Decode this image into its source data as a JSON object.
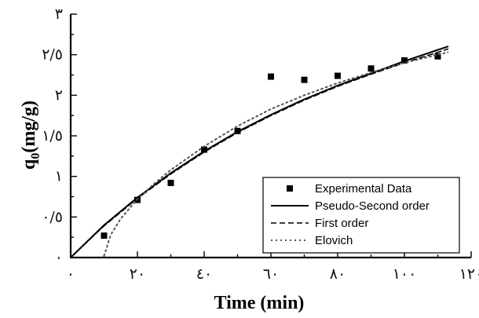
{
  "chart_data": {
    "type": "scatter",
    "title": "",
    "xlabel": "Time (min)",
    "ylabel": "q0(mg/g)",
    "ylabel_main": "q",
    "ylabel_sub": "0",
    "ylabel_rest": "(mg/g)",
    "xlim": [
      0,
      120
    ],
    "ylim": [
      0,
      3
    ],
    "x_ticks": [
      0,
      20,
      40,
      60,
      80,
      100,
      120
    ],
    "x_tick_labels": [
      "٠",
      "٢٠",
      "٤٠",
      "٦٠",
      "٨٠",
      "١٠٠",
      "١٢٠"
    ],
    "y_ticks": [
      0,
      0.5,
      1,
      1.5,
      2,
      2.5,
      3
    ],
    "y_tick_labels": [
      "٠",
      "٠/٥",
      "١",
      "١/٥",
      "٢",
      "٢/٥",
      "٣"
    ],
    "grid": false,
    "legend_position": "bottom-right",
    "series": [
      {
        "name": "Experimental Data",
        "kind": "points",
        "marker": "square",
        "color": "#000000",
        "x": [
          10,
          20,
          30,
          40,
          50,
          60,
          70,
          80,
          90,
          100,
          110
        ],
        "y": [
          0.27,
          0.71,
          0.92,
          1.33,
          1.56,
          2.23,
          2.19,
          2.24,
          2.33,
          2.43,
          2.48
        ]
      },
      {
        "name": "Pseudo-Second order",
        "kind": "line",
        "dash": "solid",
        "color": "#000000",
        "x": [
          0,
          10,
          20,
          30,
          40,
          50,
          60,
          70,
          80,
          90,
          100,
          110,
          113
        ],
        "y": [
          0,
          0.4,
          0.74,
          1.04,
          1.31,
          1.55,
          1.76,
          1.95,
          2.12,
          2.27,
          2.42,
          2.56,
          2.6
        ]
      },
      {
        "name": "First order",
        "kind": "line",
        "dash": "dashed",
        "color": "#000000",
        "x": [
          0,
          10,
          20,
          30,
          40,
          50,
          60,
          70,
          80,
          90,
          100,
          110,
          113
        ],
        "y": [
          0,
          0.39,
          0.73,
          1.03,
          1.3,
          1.54,
          1.75,
          1.94,
          2.11,
          2.26,
          2.4,
          2.53,
          2.57
        ]
      },
      {
        "name": "Elovich",
        "kind": "line",
        "dash": "dotted",
        "color": "#555555",
        "x": [
          10,
          12,
          15,
          20,
          25,
          30,
          40,
          50,
          60,
          70,
          80,
          90,
          100,
          110,
          113
        ],
        "y": [
          0.02,
          0.28,
          0.48,
          0.72,
          0.91,
          1.08,
          1.37,
          1.62,
          1.83,
          2.0,
          2.15,
          2.28,
          2.4,
          2.5,
          2.53
        ]
      }
    ]
  }
}
